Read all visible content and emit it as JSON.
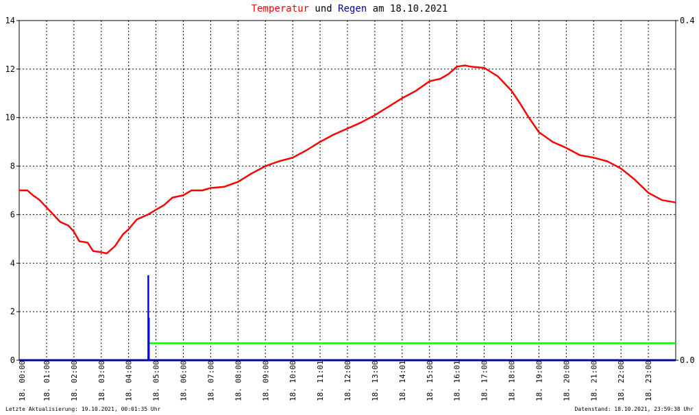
{
  "title": {
    "part1": "Temperatur",
    "part2": " und ",
    "part3": "Regen",
    "part4": " am 18.10.2021"
  },
  "footer": {
    "left": "Letzte Aktualisierung: 19.10.2021, 00:01:35 Uhr",
    "right": "Datenstand: 18.10.2021, 23:59:38 Uhr"
  },
  "colors": {
    "temperature": "#ff0000",
    "rain": "#0000ff",
    "constant_line": "#00ff00",
    "baseline": "#000099",
    "grid": "#000000"
  },
  "chart_data": {
    "type": "line",
    "x_range_hours": [
      0,
      24
    ],
    "ylim_left": [
      0,
      14
    ],
    "yticks_left": [
      "0",
      "2",
      "4",
      "6",
      "8",
      "10",
      "12",
      "14"
    ],
    "ylim_right": [
      0,
      0.4
    ],
    "yticks_right": [
      "0.0",
      "0.4"
    ],
    "xtick_labels": [
      "18. 00:00",
      "18. 01:00",
      "18. 02:00",
      "18. 03:00",
      "18. 04:00",
      "18. 05:00",
      "18. 06:00",
      "18. 07:00",
      "18. 08:00",
      "18. 09:00",
      "18. 10:00",
      "18. 11:01",
      "18. 12:00",
      "18. 13:00",
      "18. 14:01",
      "18. 15:00",
      "18. 16:01",
      "18. 17:00",
      "18. 18:00",
      "18. 19:00",
      "18. 20:00",
      "18. 21:00",
      "18. 22:00",
      "18. 23:00"
    ],
    "grid": true,
    "series": [
      {
        "name": "Temperatur",
        "axis": "left",
        "points": [
          [
            0.0,
            7.0
          ],
          [
            0.3,
            7.0
          ],
          [
            0.5,
            6.8
          ],
          [
            0.75,
            6.6
          ],
          [
            1.0,
            6.3
          ],
          [
            1.25,
            6.0
          ],
          [
            1.5,
            5.7
          ],
          [
            1.8,
            5.55
          ],
          [
            2.0,
            5.3
          ],
          [
            2.2,
            4.9
          ],
          [
            2.5,
            4.85
          ],
          [
            2.7,
            4.5
          ],
          [
            3.0,
            4.45
          ],
          [
            3.2,
            4.4
          ],
          [
            3.5,
            4.7
          ],
          [
            3.8,
            5.2
          ],
          [
            4.0,
            5.4
          ],
          [
            4.3,
            5.8
          ],
          [
            4.7,
            6.0
          ],
          [
            5.0,
            6.2
          ],
          [
            5.3,
            6.4
          ],
          [
            5.6,
            6.7
          ],
          [
            6.0,
            6.8
          ],
          [
            6.3,
            7.0
          ],
          [
            6.7,
            7.0
          ],
          [
            7.0,
            7.1
          ],
          [
            7.5,
            7.15
          ],
          [
            8.0,
            7.35
          ],
          [
            8.5,
            7.7
          ],
          [
            9.0,
            8.0
          ],
          [
            9.5,
            8.2
          ],
          [
            10.0,
            8.35
          ],
          [
            10.5,
            8.65
          ],
          [
            11.0,
            9.0
          ],
          [
            11.5,
            9.3
          ],
          [
            12.0,
            9.55
          ],
          [
            12.5,
            9.8
          ],
          [
            13.0,
            10.1
          ],
          [
            13.5,
            10.45
          ],
          [
            14.0,
            10.8
          ],
          [
            14.5,
            11.1
          ],
          [
            15.0,
            11.5
          ],
          [
            15.4,
            11.6
          ],
          [
            15.7,
            11.8
          ],
          [
            16.0,
            12.1
          ],
          [
            16.3,
            12.15
          ],
          [
            16.5,
            12.1
          ],
          [
            17.0,
            12.05
          ],
          [
            17.5,
            11.7
          ],
          [
            18.0,
            11.1
          ],
          [
            18.3,
            10.6
          ],
          [
            18.6,
            10.05
          ],
          [
            19.0,
            9.4
          ],
          [
            19.5,
            9.0
          ],
          [
            20.0,
            8.75
          ],
          [
            20.5,
            8.45
          ],
          [
            21.0,
            8.35
          ],
          [
            21.5,
            8.2
          ],
          [
            22.0,
            7.9
          ],
          [
            22.5,
            7.45
          ],
          [
            23.0,
            6.9
          ],
          [
            23.5,
            6.6
          ],
          [
            24.0,
            6.5
          ]
        ]
      },
      {
        "name": "Regen",
        "axis": "right",
        "bars": [
          [
            4.72,
            0.1
          ],
          [
            4.74,
            0.05
          ]
        ]
      },
      {
        "axis": "left",
        "constant_from_hour": 4.75,
        "value": 0.7
      }
    ]
  }
}
